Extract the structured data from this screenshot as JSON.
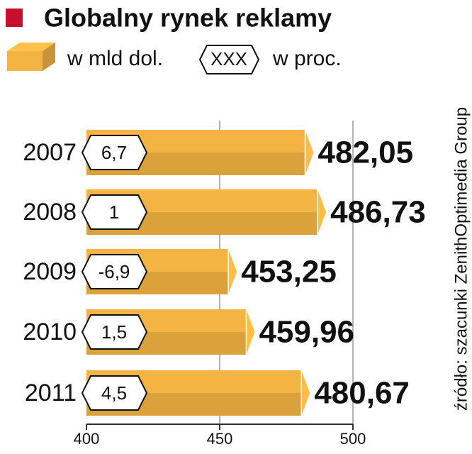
{
  "chart_data": {
    "type": "bar",
    "orientation": "horizontal",
    "title": "Globalny rynek reklamy",
    "source": "źródło: szacunki ZenithOptimedia Group",
    "legend_badge_text": "XXX",
    "categories": [
      "2007",
      "2008",
      "2009",
      "2010",
      "2011"
    ],
    "series": [
      {
        "name": "w mld dol.",
        "color": "#f3b443",
        "values": [
          482.05,
          486.73,
          453.25,
          459.96,
          480.67
        ],
        "value_labels": [
          "482,05",
          "486,73",
          "453,25",
          "459,96",
          "480,67"
        ]
      },
      {
        "name": "w proc.",
        "color": "#ffffff",
        "values": [
          6.7,
          1,
          -6.9,
          1.5,
          4.5
        ],
        "value_labels": [
          "6,7",
          "1",
          "-6,9",
          "1,5",
          "4,5"
        ]
      }
    ],
    "xlim": [
      400,
      500
    ],
    "xticks": [
      400,
      450,
      500
    ],
    "grid": true,
    "accent_color": "#c8102e"
  }
}
